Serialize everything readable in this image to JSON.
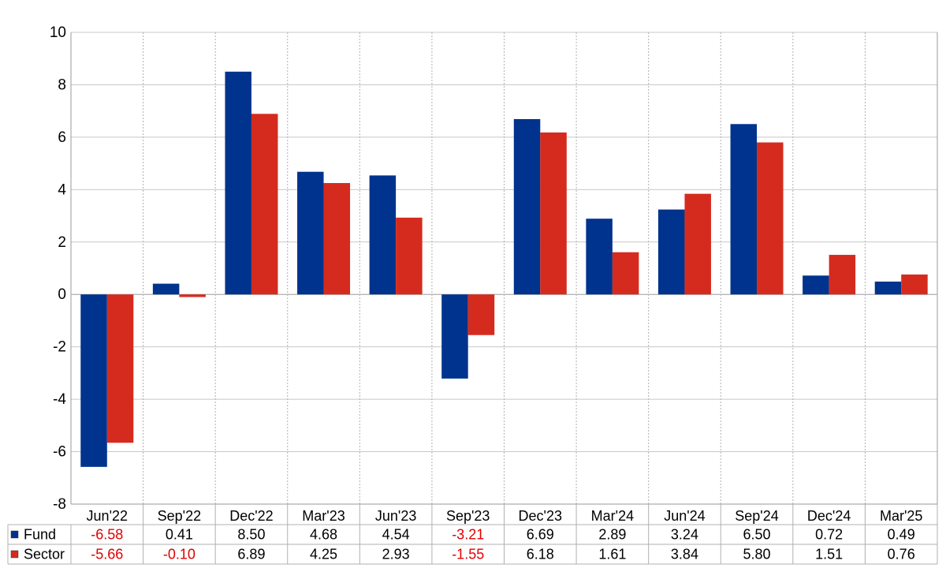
{
  "chart_data": {
    "type": "bar",
    "title": "",
    "xlabel": "",
    "ylabel": "",
    "ylim": [
      -8,
      10
    ],
    "yticks": [
      -8,
      -6,
      -4,
      -2,
      0,
      2,
      4,
      6,
      8,
      10
    ],
    "grid": true,
    "legend": "data-table-left",
    "categories": [
      "Jun'22",
      "Sep'22",
      "Dec'22",
      "Mar'23",
      "Jun'23",
      "Sep'23",
      "Dec'23",
      "Mar'24",
      "Jun'24",
      "Sep'24",
      "Dec'24",
      "Mar'25"
    ],
    "series": [
      {
        "name": "Fund",
        "color": "#00338d",
        "values": [
          -6.58,
          0.41,
          8.5,
          4.68,
          4.54,
          -3.21,
          6.69,
          2.89,
          3.24,
          6.5,
          0.72,
          0.49
        ],
        "labels": [
          "-6.58",
          "0.41",
          "8.50",
          "4.68",
          "4.54",
          "-3.21",
          "6.69",
          "2.89",
          "3.24",
          "6.50",
          "0.72",
          "0.49"
        ]
      },
      {
        "name": "Sector",
        "color": "#d52b1e",
        "values": [
          -5.66,
          -0.1,
          6.89,
          4.25,
          2.93,
          -1.55,
          6.18,
          1.61,
          3.84,
          5.8,
          1.51,
          0.76
        ],
        "labels": [
          "-5.66",
          "-0.10",
          "6.89",
          "4.25",
          "2.93",
          "-1.55",
          "6.18",
          "1.61",
          "3.84",
          "5.80",
          "1.51",
          "0.76"
        ]
      }
    ],
    "negative_label_color": "#e00000",
    "positive_label_color": "#000000"
  }
}
